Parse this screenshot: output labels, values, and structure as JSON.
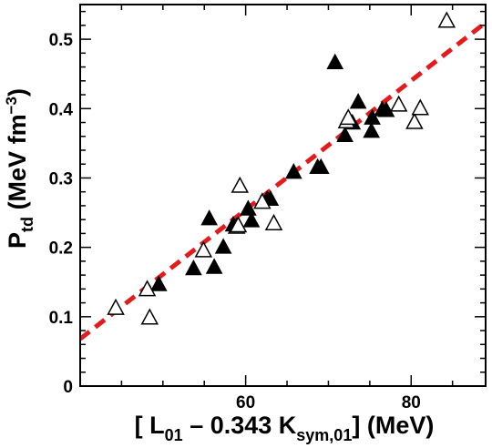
{
  "chart_data": {
    "type": "scatter",
    "xlabel": "[ L01 – 0.343 Ksym,01] (MeV)",
    "ylabel": "Ptd (MeV fm−3)",
    "xlabel_parts": {
      "open": "[ L",
      "sub1": "01",
      "mid": " – 0.343 K",
      "sub2": "sym,01",
      "close": "] (MeV)"
    },
    "ylabel_parts": {
      "main": "P",
      "sub": "td",
      "unit": " (MeV fm",
      "sup": "−3",
      "close": ")"
    },
    "xlim": [
      40,
      89
    ],
    "ylim": [
      0,
      0.55
    ],
    "x_ticks": [
      60,
      80
    ],
    "x_tick_labels": [
      "60",
      "80"
    ],
    "y_ticks": [
      0,
      0.1,
      0.2,
      0.3,
      0.4,
      0.5
    ],
    "y_tick_labels": [
      "0",
      "0.1",
      "0.2",
      "0.3",
      "0.4",
      "0.5"
    ],
    "grid": false,
    "fit_line": {
      "color": "#e41a1c",
      "style": "dashed",
      "x": [
        40,
        89
      ],
      "y": [
        0.068,
        0.524
      ]
    },
    "series": [
      {
        "marker": "filled-triangle",
        "color": "#000000",
        "points": [
          [
            49.5,
            0.147
          ],
          [
            53.7,
            0.17
          ],
          [
            55.6,
            0.242
          ],
          [
            56.2,
            0.172
          ],
          [
            57.3,
            0.201
          ],
          [
            58.5,
            0.233
          ],
          [
            60.3,
            0.256
          ],
          [
            60.7,
            0.239
          ],
          [
            62.6,
            0.27
          ],
          [
            63.0,
            0.27
          ],
          [
            65.8,
            0.309
          ],
          [
            68.7,
            0.316
          ],
          [
            69.1,
            0.316
          ],
          [
            70.8,
            0.467
          ],
          [
            72.0,
            0.362
          ],
          [
            72.9,
            0.38
          ],
          [
            73.6,
            0.41
          ],
          [
            75.2,
            0.368
          ],
          [
            75.3,
            0.387
          ],
          [
            76.5,
            0.399
          ],
          [
            77.0,
            0.398
          ]
        ]
      },
      {
        "marker": "open-triangle",
        "color": "#000000",
        "points": [
          [
            44.3,
            0.113
          ],
          [
            48.1,
            0.14
          ],
          [
            48.4,
            0.099
          ],
          [
            54.9,
            0.196
          ],
          [
            58.9,
            0.23
          ],
          [
            59.1,
            0.232
          ],
          [
            59.3,
            0.289
          ],
          [
            62.0,
            0.266
          ],
          [
            63.4,
            0.235
          ],
          [
            72.2,
            0.382
          ],
          [
            72.4,
            0.387
          ],
          [
            78.5,
            0.406
          ],
          [
            80.4,
            0.381
          ],
          [
            81.1,
            0.401
          ],
          [
            84.3,
            0.527
          ]
        ]
      }
    ]
  }
}
